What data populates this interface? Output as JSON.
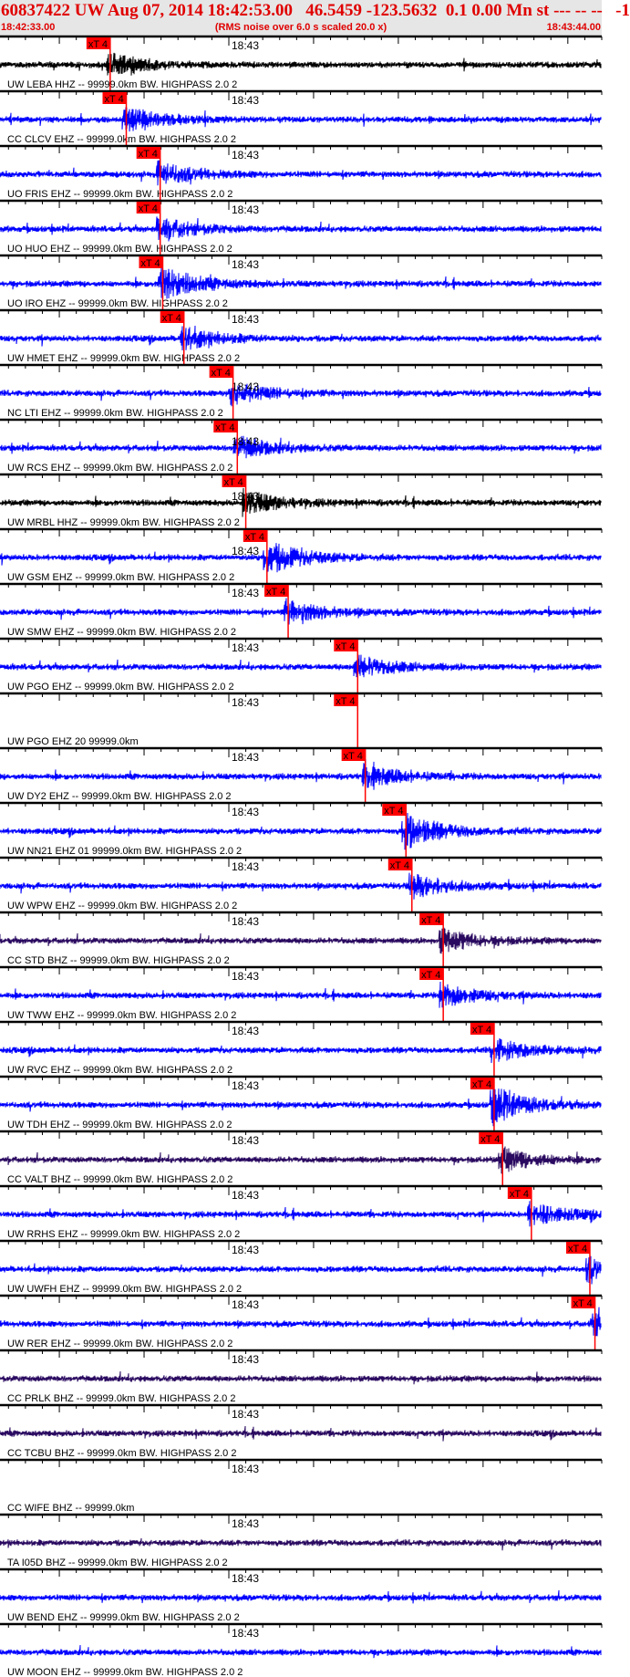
{
  "header": {
    "title": "60837422 UW Aug 07, 2014 18:42:53.00   46.5459 -123.5632  0.1 0.00 Mn st --- -- --   -1",
    "start_time": "18:42:33.00",
    "subtitle": "(RMS noise over 6.0 s scaled 20.0 x)",
    "end_time": "18:43:44.00",
    "color": "#e00000"
  },
  "chart_data": {
    "type": "line",
    "title": "",
    "x_range": [
      "18:42:33.00",
      "18:43:44.00"
    ],
    "x_tick_label": "18:43",
    "minor_tick_interval_s": 2,
    "major_tick_interval_s": 10,
    "pick_color": "#ff0000",
    "traces": [
      {
        "label": "UW LEBA HHZ -- 99999.0km BW. HIGHPASS  2.0  2",
        "color": "#000000",
        "pick": "18:42:46.0",
        "pick_label": "xT 4"
      },
      {
        "label": "CC CLCV EHZ -- 99999.0km BW. HIGHPASS  2.0  2",
        "color": "#0000ff",
        "pick": "18:42:47.9",
        "pick_label": "xT 4"
      },
      {
        "label": "UO FRIS EHZ -- 99999.0km BW. HIGHPASS  2.0  2",
        "color": "#0000ff",
        "pick": "18:42:51.9",
        "pick_label": "xT 4"
      },
      {
        "label": "UO HUO EHZ -- 99999.0km BW. HIGHPASS  2.0  2",
        "color": "#0000ff",
        "pick": "18:42:51.9",
        "pick_label": "xT 4"
      },
      {
        "label": "UO IRO EHZ -- 99999.0km BW. HIGHPASS  2.0  2",
        "color": "#0000ff",
        "pick": "18:42:52.2",
        "pick_label": "xT 4"
      },
      {
        "label": "UW HMET EHZ -- 99999.0km BW. HIGHPASS  2.0  2",
        "color": "#0000ff",
        "pick": "18:42:54.7",
        "pick_label": "xT 4"
      },
      {
        "label": "NC LTI EHZ -- 99999.0km BW. HIGHPASS  2.0  2",
        "color": "#0000ff",
        "pick": "18:43:00.5",
        "pick_label": "xT 4"
      },
      {
        "label": "UW RCS EHZ -- 99999.0km BW. HIGHPASS  2.0  2",
        "color": "#0000ff",
        "pick": "18:43:01.0",
        "pick_label": "xT 4"
      },
      {
        "label": "UW MRBL HHZ -- 99999.0km BW. HIGHPASS  2.0  2",
        "color": "#000000",
        "pick": "18:43:02.0",
        "pick_label": "xT 4"
      },
      {
        "label": "UW GSM EHZ -- 99999.0km BW. HIGHPASS  2.0  2",
        "color": "#0000ff",
        "pick": "18:43:04.5",
        "pick_label": "xT 4"
      },
      {
        "label": "UW SMW EHZ -- 99999.0km BW. HIGHPASS  2.0  2",
        "color": "#0000ff",
        "pick": "18:43:07.0",
        "pick_label": "xT 4"
      },
      {
        "label": "UW PGO EHZ -- 99999.0km BW. HIGHPASS  2.0  2",
        "color": "#0000ff",
        "pick": "18:43:15.2",
        "pick_label": "xT 4"
      },
      {
        "label": "UW PGO EHZ 20 99999.0km",
        "color": "#0000ff",
        "pick": "18:43:15.2",
        "pick_label": "xT 4",
        "empty": true
      },
      {
        "label": "UW DY2 EHZ -- 99999.0km BW. HIGHPASS  2.0  2",
        "color": "#0000ff",
        "pick": "18:43:16.1",
        "pick_label": "xT 4"
      },
      {
        "label": "UW NN21 EHZ 01 99999.0km BW. HIGHPASS  2.0  2",
        "color": "#0000ff",
        "pick": "18:43:20.9",
        "pick_label": "xT 4"
      },
      {
        "label": "UW WPW EHZ -- 99999.0km BW. HIGHPASS  2.0  2",
        "color": "#0000ff",
        "pick": "18:43:21.6",
        "pick_label": "xT 4"
      },
      {
        "label": "CC STD BHZ -- 99999.0km BW. HIGHPASS  2.0  2",
        "color": "#2a0a60",
        "pick": "18:43:25.3",
        "pick_label": "xT 4"
      },
      {
        "label": "UW TWW EHZ -- 99999.0km BW. HIGHPASS  2.0  2",
        "color": "#0000ff",
        "pick": "18:43:25.3",
        "pick_label": "xT 4"
      },
      {
        "label": "UW RVC EHZ -- 99999.0km BW. HIGHPASS  2.0  2",
        "color": "#0000ff",
        "pick": "18:43:31.3",
        "pick_label": "xT 4"
      },
      {
        "label": "UW TDH EHZ -- 99999.0km BW. HIGHPASS  2.0  2",
        "color": "#0000ff",
        "pick": "18:43:31.3",
        "pick_label": "xT 4"
      },
      {
        "label": "CC VALT BHZ -- 99999.0km BW. HIGHPASS  2.0  2",
        "color": "#2a0a60",
        "pick": "18:43:32.3",
        "pick_label": "xT 4"
      },
      {
        "label": "UW RRHS EHZ -- 99999.0km BW. HIGHPASS  2.0  2",
        "color": "#0000ff",
        "pick": "18:43:35.7",
        "pick_label": "xT 4"
      },
      {
        "label": "UW UWFH EHZ -- 99999.0km BW. HIGHPASS  2.0  2",
        "color": "#0000ff",
        "pick": "18:43:42.6",
        "pick_label": "xT 4"
      },
      {
        "label": "UW RER EHZ -- 99999.0km BW. HIGHPASS  2.0  2",
        "color": "#0000ff",
        "pick": "18:43:43.2",
        "pick_label": "xT 4"
      },
      {
        "label": "CC PRLK BHZ -- 99999.0km BW. HIGHPASS  2.0  2",
        "color": "#2a0a60"
      },
      {
        "label": "CC TCBU BHZ -- 99999.0km BW. HIGHPASS  2.0  2",
        "color": "#2a0a60"
      },
      {
        "label": "CC WIFE BHZ -- 99999.0km",
        "color": "#2a0a60",
        "empty": true
      },
      {
        "label": "TA I05D BHZ -- 99999.0km BW. HIGHPASS  2.0  2",
        "color": "#2a0a60"
      },
      {
        "label": "UW BEND EHZ -- 99999.0km BW. HIGHPASS  2.0  2",
        "color": "#0000ff"
      },
      {
        "label": "UW MOON EHZ -- 99999.0km BW. HIGHPASS  2.0  2",
        "color": "#0000ff"
      }
    ]
  }
}
